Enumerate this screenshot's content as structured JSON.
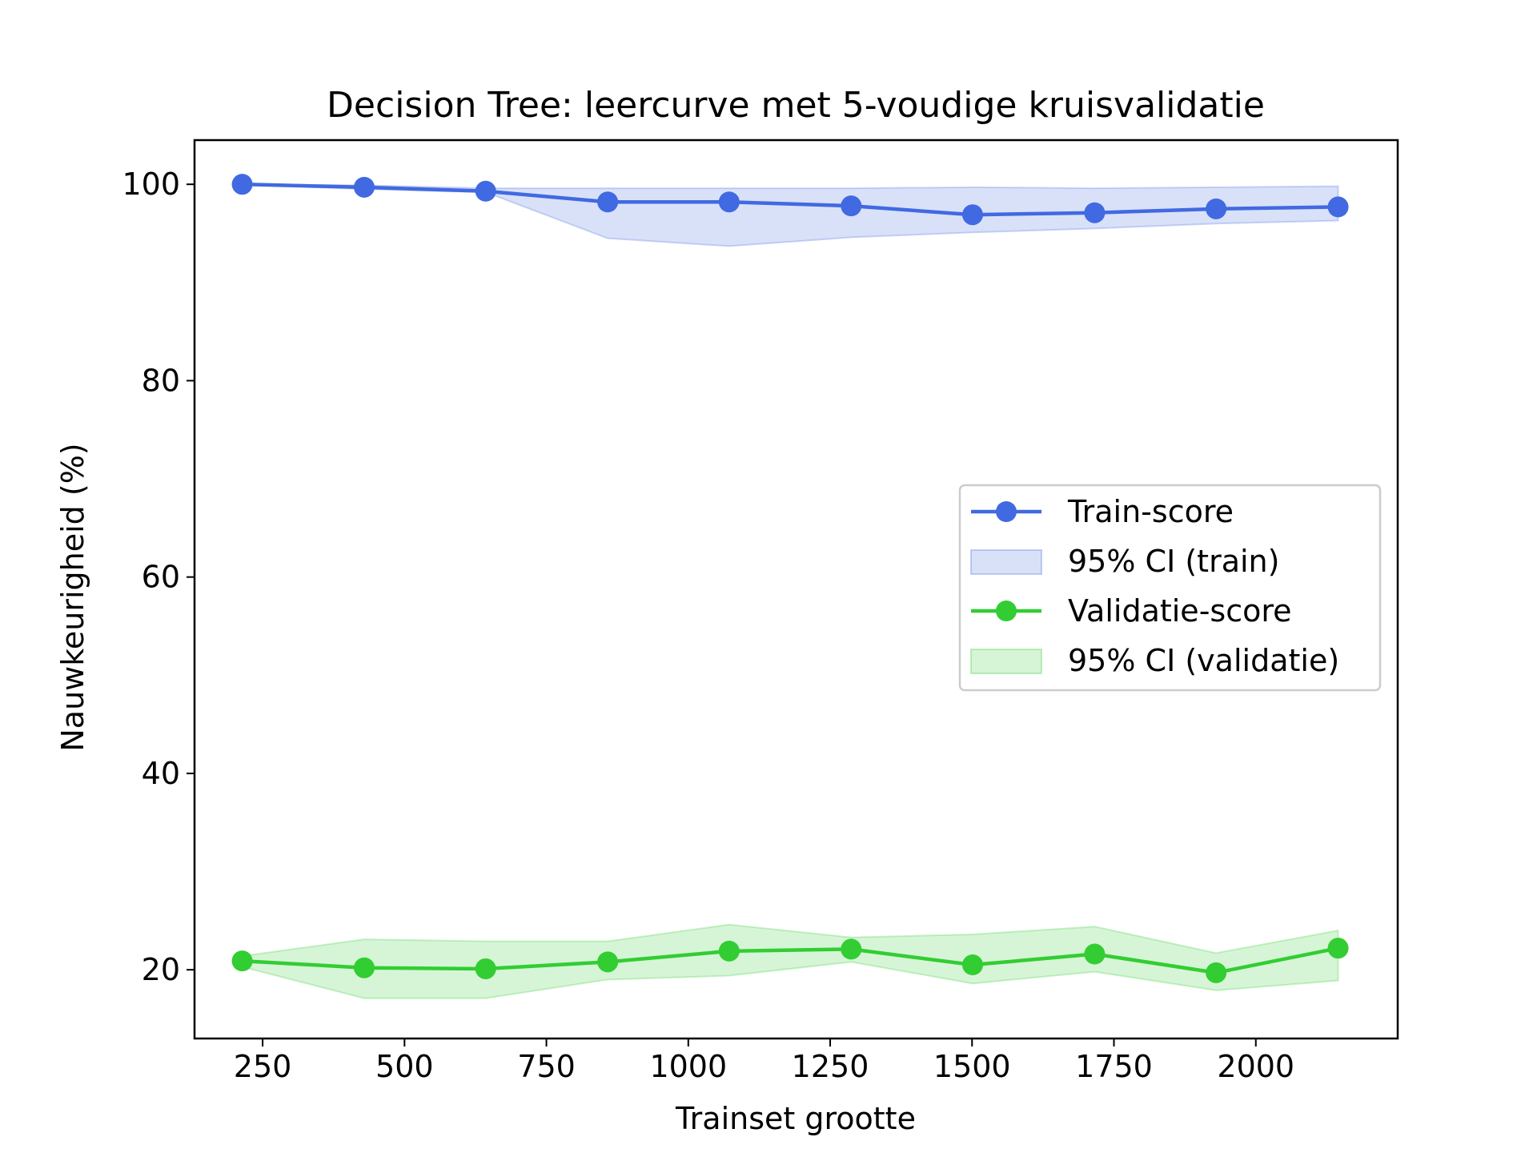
{
  "chart_data": {
    "type": "line",
    "title": "Decision Tree: leercurve met 5-voudige kruisvalidatie",
    "xlabel": "Trainset grootte",
    "ylabel": "Nauwkeurigheid (%)",
    "xlim": [
      130,
      2250
    ],
    "ylim": [
      13,
      104.5
    ],
    "xticks": [
      250,
      500,
      750,
      1000,
      1250,
      1500,
      1750,
      2000
    ],
    "yticks": [
      20,
      40,
      60,
      80,
      100
    ],
    "grid": false,
    "legend_position": "center-right",
    "x": [
      214,
      429,
      643,
      858,
      1072,
      1287,
      1501,
      1716,
      1930,
      2145
    ],
    "series": [
      {
        "name": "Train-score",
        "color": "#4169e1",
        "values": [
          100.0,
          99.7,
          99.3,
          98.2,
          98.2,
          97.8,
          96.9,
          97.1,
          97.5,
          97.7
        ],
        "ci_name": "95% CI (train)",
        "ci_lower": [
          100.0,
          99.5,
          99.2,
          94.5,
          93.7,
          94.6,
          95.1,
          95.5,
          96.0,
          96.3
        ],
        "ci_upper": [
          100.0,
          99.9,
          99.6,
          99.6,
          99.6,
          99.6,
          99.7,
          99.6,
          99.7,
          99.8
        ]
      },
      {
        "name": "Validatie-score",
        "color": "#32cd32",
        "values": [
          20.9,
          20.2,
          20.1,
          20.8,
          21.9,
          22.1,
          20.5,
          21.6,
          19.7,
          22.2
        ],
        "ci_name": "95% CI (validatie)",
        "ci_lower": [
          20.3,
          17.1,
          17.1,
          19.0,
          19.4,
          20.8,
          18.6,
          19.8,
          17.9,
          18.9
        ],
        "ci_upper": [
          21.4,
          23.1,
          22.9,
          22.9,
          24.6,
          23.3,
          23.6,
          24.4,
          21.7,
          24.0
        ]
      }
    ]
  }
}
